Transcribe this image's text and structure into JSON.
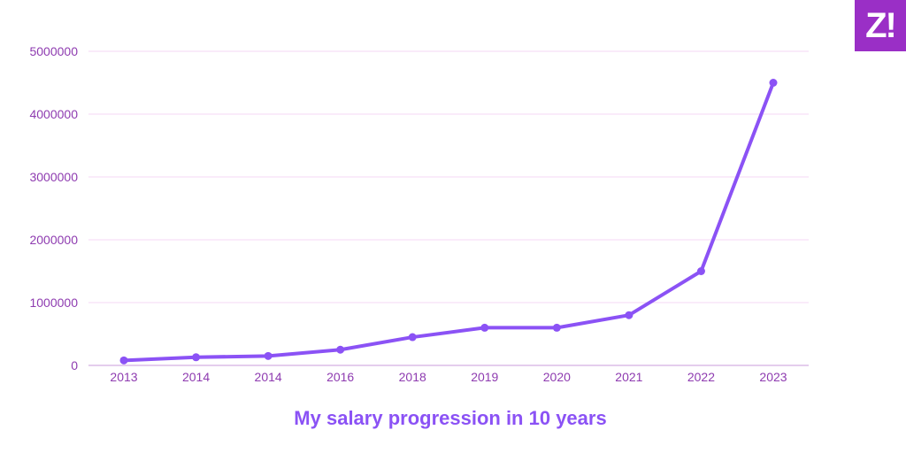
{
  "logo": {
    "text": "Z!"
  },
  "colors": {
    "line": "#8b52f5",
    "grid": "#f4d7f4",
    "axis": "#c89bdb",
    "tick_text": "#8e3bb0",
    "caption": "#8b52f5",
    "logo_bg": "#9a2fc6"
  },
  "chart_data": {
    "type": "line",
    "title": "My salary progression in 10 years",
    "xlabel": "",
    "ylabel": "",
    "categories": [
      "2013",
      "2014",
      "2014",
      "2016",
      "2018",
      "2019",
      "2020",
      "2021",
      "2022",
      "2023"
    ],
    "values": [
      80000,
      130000,
      150000,
      250000,
      450000,
      600000,
      600000,
      800000,
      1500000,
      4500000
    ],
    "ylim": [
      0,
      5000000
    ],
    "yticks": [
      0,
      1000000,
      2000000,
      3000000,
      4000000,
      5000000
    ],
    "ytick_labels": [
      "0",
      "1000000",
      "2000000",
      "3000000",
      "4000000",
      "5000000"
    ],
    "grid": true,
    "markers": true,
    "legend": "none"
  }
}
